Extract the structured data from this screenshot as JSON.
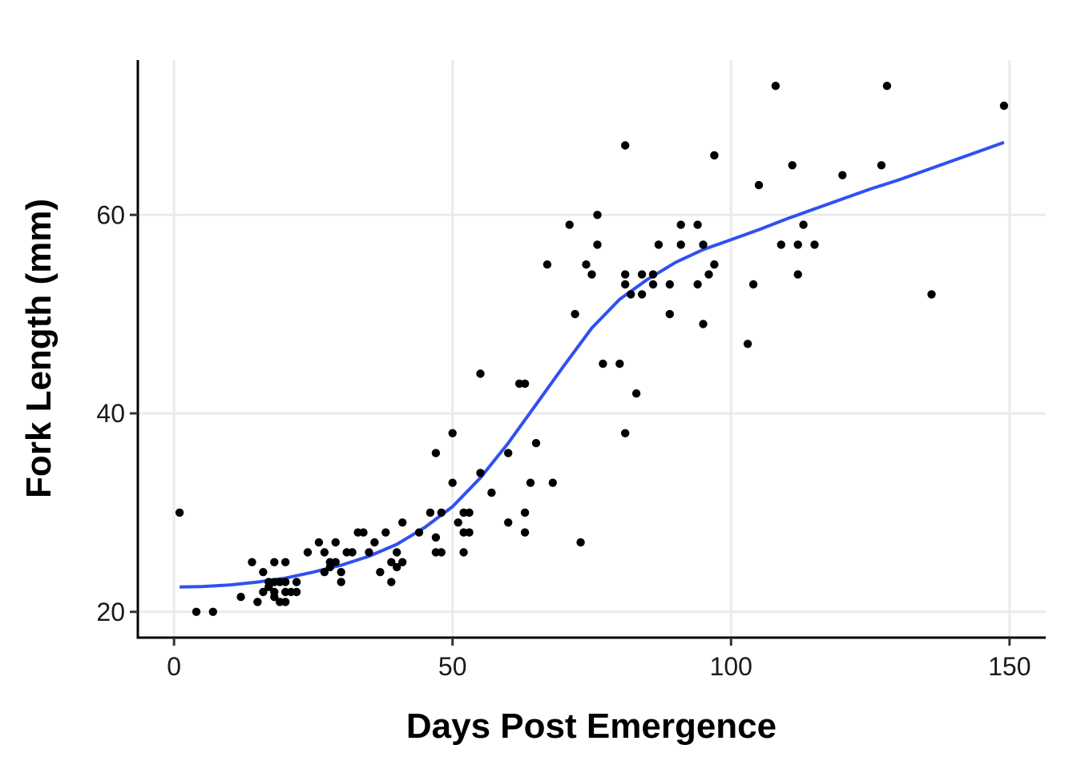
{
  "chart_data": {
    "type": "scatter",
    "title": "",
    "xlabel": "Days Post Emergence",
    "ylabel": "Fork Length (mm)",
    "xlim": [
      -6.5,
      156.5
    ],
    "ylim": [
      17.4,
      75.6
    ],
    "x_ticks": [
      0,
      50,
      100,
      150
    ],
    "y_ticks": [
      20,
      40,
      60
    ],
    "grid": true,
    "legend": "none",
    "colors": {
      "points": "#000000",
      "smooth": "#3050f0"
    },
    "series": [
      {
        "type": "scatter",
        "points": [
          [
            1,
            30
          ],
          [
            4,
            20
          ],
          [
            7,
            20
          ],
          [
            12,
            21.5
          ],
          [
            14,
            25
          ],
          [
            15,
            21
          ],
          [
            16,
            24
          ],
          [
            16,
            22
          ],
          [
            17,
            22.5
          ],
          [
            17,
            23
          ],
          [
            18,
            21.5
          ],
          [
            18,
            25
          ],
          [
            18,
            23
          ],
          [
            18,
            22
          ],
          [
            19,
            21
          ],
          [
            19,
            23
          ],
          [
            20,
            25
          ],
          [
            20,
            23
          ],
          [
            20,
            22
          ],
          [
            20,
            21
          ],
          [
            21,
            22
          ],
          [
            22,
            23
          ],
          [
            22,
            22
          ],
          [
            24,
            26
          ],
          [
            26,
            27
          ],
          [
            27,
            24
          ],
          [
            27,
            26
          ],
          [
            28,
            25
          ],
          [
            28,
            24.5
          ],
          [
            29,
            25
          ],
          [
            29,
            27
          ],
          [
            30,
            23
          ],
          [
            30,
            24
          ],
          [
            31,
            26
          ],
          [
            32,
            26
          ],
          [
            33,
            28
          ],
          [
            34,
            28
          ],
          [
            35,
            26
          ],
          [
            36,
            27
          ],
          [
            37,
            24
          ],
          [
            38,
            28
          ],
          [
            39,
            23
          ],
          [
            39,
            25
          ],
          [
            40,
            26
          ],
          [
            40,
            24.5
          ],
          [
            41,
            25
          ],
          [
            41,
            29
          ],
          [
            44,
            28
          ],
          [
            46,
            30
          ],
          [
            47,
            27.5
          ],
          [
            47,
            26
          ],
          [
            47,
            36
          ],
          [
            48,
            30
          ],
          [
            48,
            26
          ],
          [
            50,
            33
          ],
          [
            50,
            38
          ],
          [
            51,
            29
          ],
          [
            52,
            30
          ],
          [
            52,
            28
          ],
          [
            52,
            26
          ],
          [
            53,
            30
          ],
          [
            53,
            28
          ],
          [
            55,
            34
          ],
          [
            55,
            44
          ],
          [
            57,
            32
          ],
          [
            60,
            36
          ],
          [
            60,
            29
          ],
          [
            62,
            43
          ],
          [
            63,
            43
          ],
          [
            63,
            30
          ],
          [
            63,
            28
          ],
          [
            64,
            33
          ],
          [
            65,
            37
          ],
          [
            67,
            55
          ],
          [
            68,
            33
          ],
          [
            71,
            59
          ],
          [
            72,
            50
          ],
          [
            73,
            27
          ],
          [
            74,
            55
          ],
          [
            75,
            54
          ],
          [
            76,
            60
          ],
          [
            76,
            57
          ],
          [
            77,
            45
          ],
          [
            80,
            45
          ],
          [
            81,
            67
          ],
          [
            81,
            54
          ],
          [
            81,
            53
          ],
          [
            81,
            38
          ],
          [
            82,
            52
          ],
          [
            83,
            42
          ],
          [
            84,
            54
          ],
          [
            84,
            52
          ],
          [
            86,
            54
          ],
          [
            86,
            53
          ],
          [
            87,
            57
          ],
          [
            89,
            50
          ],
          [
            89,
            53
          ],
          [
            91,
            57
          ],
          [
            91,
            59
          ],
          [
            94,
            59
          ],
          [
            94,
            53
          ],
          [
            95,
            57
          ],
          [
            95,
            49
          ],
          [
            96,
            54
          ],
          [
            97,
            55
          ],
          [
            97,
            66
          ],
          [
            103,
            47
          ],
          [
            104,
            53
          ],
          [
            105,
            63
          ],
          [
            108,
            73
          ],
          [
            109,
            57
          ],
          [
            111,
            65
          ],
          [
            112,
            57
          ],
          [
            112,
            54
          ],
          [
            113,
            59
          ],
          [
            115,
            57
          ],
          [
            120,
            64
          ],
          [
            127,
            65
          ],
          [
            128,
            73
          ],
          [
            136,
            52
          ],
          [
            149,
            71
          ]
        ]
      },
      {
        "type": "line",
        "points": [
          [
            1,
            22.5
          ],
          [
            5,
            22.55
          ],
          [
            10,
            22.7
          ],
          [
            15,
            23.0
          ],
          [
            20,
            23.4
          ],
          [
            25,
            24.0
          ],
          [
            30,
            24.7
          ],
          [
            35,
            25.6
          ],
          [
            40,
            26.8
          ],
          [
            45,
            28.5
          ],
          [
            50,
            30.6
          ],
          [
            55,
            33.5
          ],
          [
            60,
            37.0
          ],
          [
            65,
            40.9
          ],
          [
            70,
            44.8
          ],
          [
            75,
            48.6
          ],
          [
            80,
            51.5
          ],
          [
            85,
            53.5
          ],
          [
            90,
            55.2
          ],
          [
            95,
            56.5
          ],
          [
            100,
            57.5
          ],
          [
            105,
            58.5
          ],
          [
            110,
            59.6
          ],
          [
            115,
            60.6
          ],
          [
            120,
            61.6
          ],
          [
            125,
            62.6
          ],
          [
            130,
            63.5
          ],
          [
            135,
            64.5
          ],
          [
            140,
            65.5
          ],
          [
            145,
            66.5
          ],
          [
            149,
            67.3
          ]
        ]
      }
    ]
  }
}
